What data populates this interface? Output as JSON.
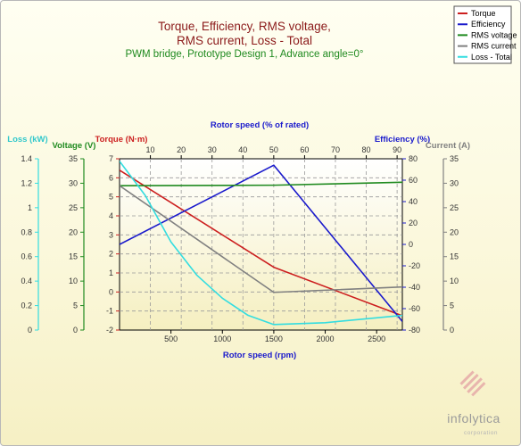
{
  "colors": {
    "torque": "#cc1f1f",
    "efficiency": "#1a1acc",
    "voltage": "#1f8a1f",
    "current": "#808080",
    "loss": "#33dde0",
    "title": "#8b1a1a",
    "subtitle": "#1f8a1f"
  },
  "branding": {
    "name": "infolytica",
    "sub": "corporation",
    "logo_icon": "infolytica-stripes-icon"
  },
  "chart_data": {
    "type": "line",
    "title": "Torque, Efficiency, RMS voltage,",
    "title_line2": "RMS current, Loss - Total",
    "subtitle": "PWM bridge, Prototype Design 1, Advance angle=0°",
    "xlabel": "Rotor speed (rpm)",
    "xlim": [
      0,
      2750
    ],
    "x_ticks": [
      "500",
      "1000",
      "1500",
      "2000",
      "2500"
    ],
    "x2label": "Rotor speed (% of rated)",
    "x2lim": [
      0,
      91.7
    ],
    "x2_ticks": [
      "10",
      "20",
      "30",
      "40",
      "50",
      "60",
      "70",
      "80",
      "90"
    ],
    "grid": true,
    "legend_position": "top-right",
    "axes": {
      "loss": {
        "label": "Loss (kW)",
        "lim": [
          0,
          1.4
        ],
        "ticks": [
          "0",
          "0.2",
          "0.4",
          "0.6",
          "0.8",
          "1",
          "1.2",
          "1.4"
        ]
      },
      "voltage": {
        "label": "Voltage (V)",
        "lim": [
          0,
          35
        ],
        "ticks": [
          "0",
          "5",
          "10",
          "15",
          "20",
          "25",
          "30",
          "35"
        ]
      },
      "torque": {
        "label": "Torque (N·m)",
        "lim": [
          -2,
          7
        ],
        "ticks": [
          "-2",
          "-1",
          "0",
          "1",
          "2",
          "3",
          "4",
          "5",
          "6",
          "7"
        ]
      },
      "efficiency": {
        "label": "Efficiency (%)",
        "lim": [
          -80,
          80
        ],
        "ticks": [
          "-80",
          "-60",
          "-40",
          "-20",
          "0",
          "20",
          "40",
          "60",
          "80"
        ]
      },
      "current": {
        "label": "Current (A)",
        "lim": [
          0,
          35
        ],
        "ticks": [
          "0",
          "5",
          "10",
          "15",
          "20",
          "25",
          "30",
          "35"
        ]
      }
    },
    "series": [
      {
        "name": "Torque",
        "axis": "torque",
        "color": "#cc1f1f",
        "x": [
          0,
          1500,
          2750
        ],
        "values": [
          6.4,
          1.3,
          -1.25
        ]
      },
      {
        "name": "Efficiency",
        "axis": "efficiency",
        "color": "#1a1acc",
        "x": [
          0,
          1500,
          2750
        ],
        "values": [
          0,
          74,
          -72
        ]
      },
      {
        "name": "RMS voltage",
        "axis": "voltage",
        "color": "#1f8a1f",
        "x": [
          0,
          1500,
          2750
        ],
        "values": [
          29.5,
          29.6,
          30.2
        ]
      },
      {
        "name": "RMS current",
        "axis": "current",
        "color": "#808080",
        "x": [
          0,
          1500,
          2750
        ],
        "values": [
          29.5,
          7.7,
          8.8
        ]
      },
      {
        "name": "Loss - Total",
        "axis": "loss",
        "color": "#33dde0",
        "x": [
          0,
          250,
          500,
          750,
          1000,
          1250,
          1500,
          2000,
          2750
        ],
        "values": [
          1.38,
          1.1,
          0.72,
          0.45,
          0.26,
          0.12,
          0.045,
          0.06,
          0.12
        ]
      }
    ]
  }
}
